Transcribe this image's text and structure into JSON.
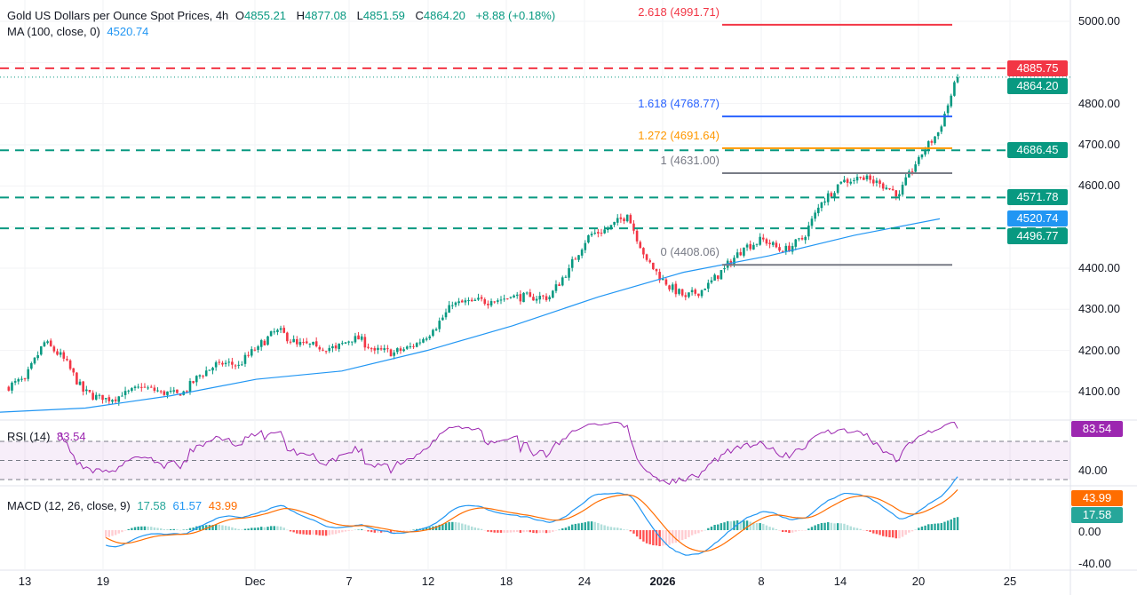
{
  "header": {
    "title": "Gold US Dollars per Ounce Spot Prices, 4h",
    "o_label": "O",
    "o": "4855.21",
    "h_label": "H",
    "h": "4877.08",
    "l_label": "L",
    "l": "4851.59",
    "c_label": "C",
    "c": "4864.20",
    "change": "+8.88 (+0.18%)"
  },
  "ma": {
    "label": "MA (100, close, 0)",
    "value": "4520.74",
    "color": "#2196f3"
  },
  "rsi": {
    "label": "RSI (14)",
    "value": "83.54",
    "color": "#9c27b0",
    "axis": "40.00"
  },
  "macd": {
    "label": "MACD (12, 26, close, 9)",
    "hist": "17.58",
    "macd": "61.57",
    "signal": "43.99",
    "axis": [
      "0.00",
      "-40.00"
    ]
  },
  "price_axis": [
    "5000.00",
    "4800.00",
    "4700.00",
    "4600.00",
    "4400.00",
    "4300.00",
    "4200.00",
    "4100.00"
  ],
  "price_tags": [
    {
      "value": "4885.75",
      "color": "#f23645"
    },
    {
      "value": "4864.20",
      "color": "#089981"
    },
    {
      "value": "4686.45",
      "color": "#089981"
    },
    {
      "value": "4571.78",
      "color": "#089981"
    },
    {
      "value": "4520.74",
      "color": "#2196f3"
    },
    {
      "value": "4496.77",
      "color": "#089981"
    }
  ],
  "fib_levels": [
    {
      "label": "2.618 (4991.71)",
      "price": 4991.71,
      "color": "#f23645"
    },
    {
      "label": "1.618 (4768.77)",
      "price": 4768.77,
      "color": "#2962ff"
    },
    {
      "label": "1.272 (4691.64)",
      "price": 4691.64,
      "color": "#ff9800"
    },
    {
      "label": "1 (4631.00)",
      "price": 4631.0,
      "color": "#787b86"
    },
    {
      "label": "0 (4408.06)",
      "price": 4408.06,
      "color": "#787b86"
    }
  ],
  "horizontal_lines": [
    {
      "price": 4885.75,
      "color": "#f23645"
    },
    {
      "price": 4686.45,
      "color": "#089981"
    },
    {
      "price": 4571.78,
      "color": "#089981"
    },
    {
      "price": 4496.77,
      "color": "#089981"
    }
  ],
  "last_price": 4864.2,
  "x_axis": [
    "13",
    "19",
    "Dec",
    "7",
    "12",
    "18",
    "24",
    "2026",
    "8",
    "14",
    "20",
    "25"
  ],
  "chart_data": {
    "type": "candlestick",
    "timeframe": "4h",
    "approx_daily_closes": [
      4130,
      4220,
      4180,
      4100,
      4080,
      4090,
      4110,
      4100,
      4090,
      4140,
      4170,
      4165,
      4210,
      4250,
      4215,
      4210,
      4205,
      4235,
      4200,
      4195,
      4210,
      4250,
      4310,
      4320,
      4320,
      4330,
      4330,
      4330,
      4400,
      4480,
      4495,
      4530,
      4420,
      4360,
      4330,
      4350,
      4400,
      4450,
      4470,
      4440,
      4470,
      4560,
      4610,
      4620,
      4605,
      4580,
      4670,
      4730,
      4864
    ],
    "approx_ma100": [
      4050,
      4060,
      4090,
      4130,
      4150,
      4200,
      4260,
      4330,
      4390,
      4430,
      4480,
      4520
    ],
    "rsi_levels": [
      70,
      50,
      30
    ],
    "colors": {
      "up": "#089981",
      "down": "#f23645",
      "ma": "#2196f3",
      "rsi": "#9c27b0",
      "macd": "#2196f3",
      "signal": "#ff6d00"
    }
  }
}
